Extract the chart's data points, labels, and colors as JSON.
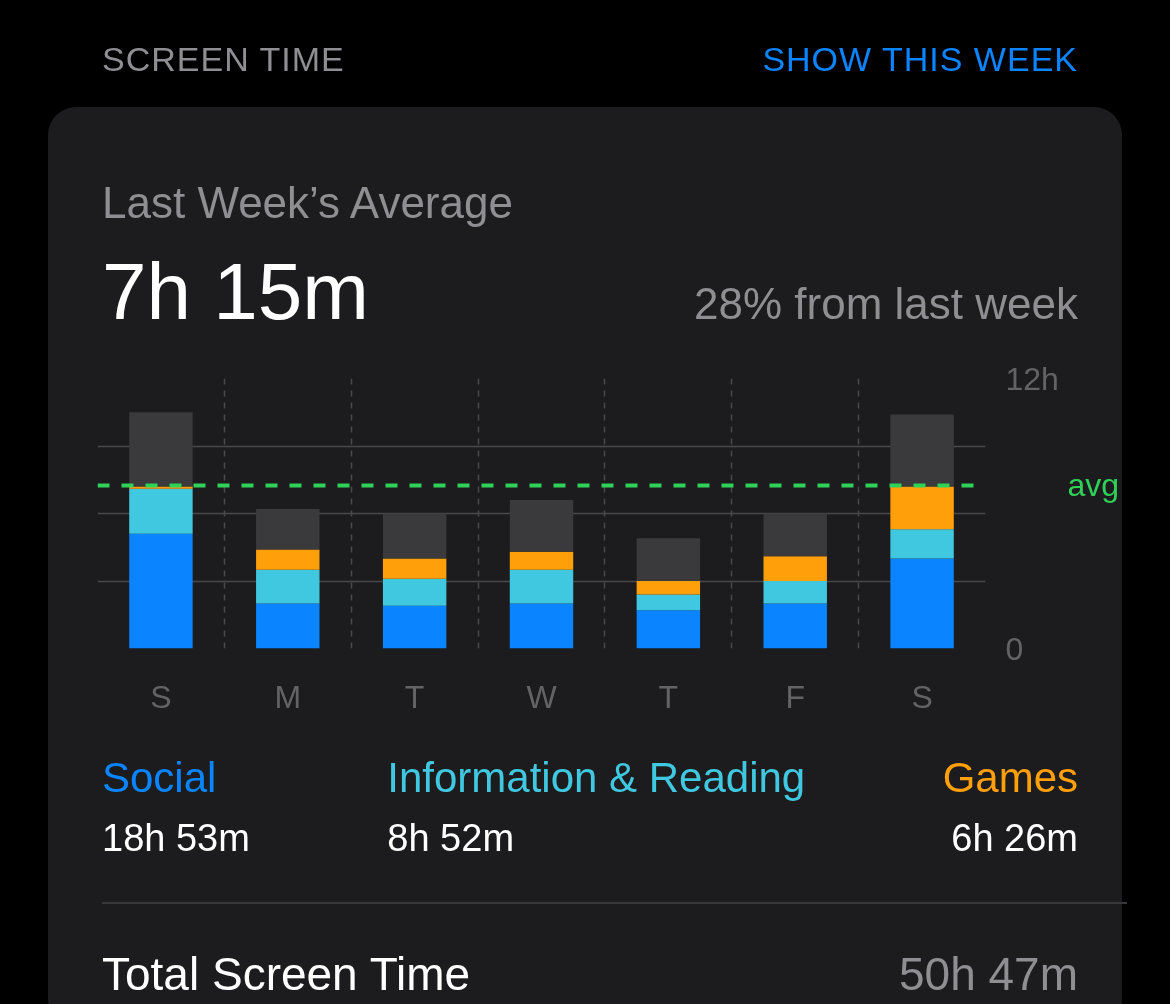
{
  "chart_data": {
    "type": "bar",
    "stacked": true,
    "title": "Last Week’s Average",
    "subtitle": "7h 15m",
    "categories": [
      "S",
      "M",
      "T",
      "W",
      "T",
      "F",
      "S"
    ],
    "series": [
      {
        "name": "Social",
        "color": "#0a84ff",
        "values": [
          5.1,
          2.0,
          1.9,
          2.0,
          1.7,
          2.0,
          4.0
        ]
      },
      {
        "name": "Information & Reading",
        "color": "#40c8e0",
        "values": [
          2.0,
          1.5,
          1.2,
          1.5,
          0.7,
          1.0,
          1.3
        ]
      },
      {
        "name": "Games",
        "color": "#ff9f0a",
        "values": [
          0.1,
          0.9,
          0.9,
          0.8,
          0.6,
          1.1,
          1.9
        ]
      },
      {
        "color": "#3a3a3c",
        "values": [
          3.3,
          1.8,
          2.0,
          2.3,
          1.9,
          1.9,
          3.2
        ]
      }
    ],
    "ylim": [
      0,
      12
    ],
    "yticks": [
      {
        "value": 0,
        "label": "0"
      },
      {
        "value": 3,
        "label": null
      },
      {
        "value": 6,
        "label": null
      },
      {
        "value": 9,
        "label": null
      },
      {
        "value": 12,
        "label": "12h"
      }
    ],
    "grid": true,
    "legend": "bottom",
    "ref_lines": [
      {
        "axis": "y",
        "value": 7.25,
        "label": "avg",
        "color": "#30d158",
        "line_style": "dashed"
      }
    ],
    "annotations": [
      "SCREEN TIME",
      "SHOW THIS WEEK",
      "28% from last week",
      "18h 53m",
      "8h 52m",
      "6h 26m",
      "Total Screen Time",
      "50h 47m"
    ]
  }
}
